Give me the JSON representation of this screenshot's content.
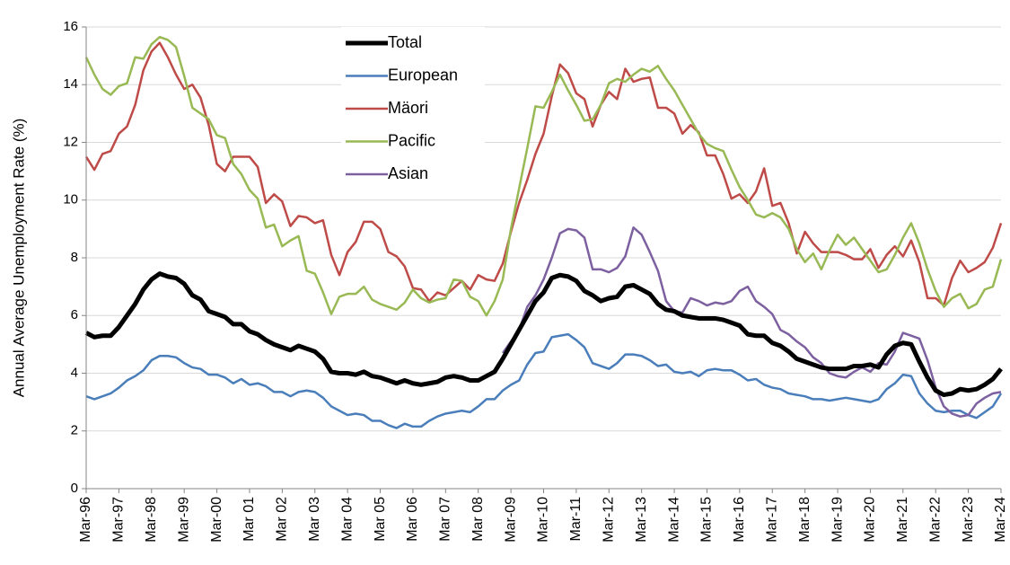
{
  "chart_data": {
    "type": "line",
    "y_label": "Annual Average Unemployment Rate  (%)",
    "categories": [
      "Mar-96",
      null,
      null,
      null,
      "Mar-97",
      null,
      null,
      null,
      "Mar-98",
      null,
      null,
      null,
      "Mar-99",
      null,
      null,
      null,
      "Mar-00",
      null,
      null,
      null,
      "Mar 01",
      null,
      null,
      null,
      "Mar 02",
      null,
      null,
      null,
      "Mar 03",
      null,
      null,
      null,
      "Mar 04",
      null,
      null,
      null,
      "Mar 05",
      null,
      null,
      null,
      "Mar 06",
      null,
      null,
      null,
      "Mar 07",
      null,
      null,
      null,
      "Mar 08",
      null,
      null,
      null,
      "Mar-09",
      null,
      null,
      null,
      "Mar-10",
      null,
      null,
      null,
      "Mar-11",
      null,
      null,
      null,
      "Mar-12",
      null,
      null,
      null,
      "Mar-13",
      null,
      null,
      null,
      "Mar-14",
      null,
      null,
      null,
      "Mar-15",
      null,
      null,
      null,
      "Mar-16",
      null,
      null,
      null,
      "Mar-17",
      null,
      null,
      null,
      "Mar-18",
      null,
      null,
      null,
      "Mar-19",
      null,
      null,
      null,
      "Mar-20",
      null,
      null,
      null,
      "Mar-21",
      null,
      null,
      null,
      "Mar-22",
      null,
      null,
      null,
      "Mar-23",
      null,
      null,
      null,
      "Mar-24"
    ],
    "series": [
      {
        "name": "Total",
        "color": "#000000",
        "width": 5,
        "values": [
          5.4,
          5.25,
          5.3,
          5.3,
          5.6,
          6.0,
          6.4,
          6.9,
          7.25,
          7.45,
          7.35,
          7.3,
          7.1,
          6.7,
          6.55,
          6.15,
          6.05,
          5.95,
          5.7,
          5.7,
          5.45,
          5.35,
          5.15,
          5.0,
          4.9,
          4.8,
          4.95,
          4.85,
          4.75,
          4.5,
          4.05,
          4.0,
          4.0,
          3.95,
          4.05,
          3.9,
          3.85,
          3.75,
          3.65,
          3.75,
          3.65,
          3.6,
          3.65,
          3.7,
          3.85,
          3.9,
          3.85,
          3.75,
          3.75,
          3.9,
          4.05,
          4.5,
          5.0,
          5.5,
          6.0,
          6.5,
          6.8,
          7.3,
          7.4,
          7.35,
          7.2,
          6.85,
          6.7,
          6.5,
          6.6,
          6.65,
          7.0,
          7.05,
          6.9,
          6.75,
          6.4,
          6.2,
          6.15,
          6.0,
          5.95,
          5.9,
          5.9,
          5.9,
          5.85,
          5.75,
          5.65,
          5.35,
          5.3,
          5.3,
          5.05,
          4.95,
          4.75,
          4.5,
          4.4,
          4.3,
          4.2,
          4.15,
          4.15,
          4.15,
          4.25,
          4.25,
          4.3,
          4.2,
          4.65,
          4.95,
          5.05,
          5.0,
          4.4,
          3.85,
          3.4,
          3.25,
          3.3,
          3.45,
          3.4,
          3.45,
          3.6,
          3.8,
          4.15
        ]
      },
      {
        "name": "European",
        "color": "#4a7ebb",
        "width": 2.5,
        "values": [
          3.2,
          3.1,
          3.2,
          3.3,
          3.5,
          3.75,
          3.9,
          4.1,
          4.45,
          4.6,
          4.6,
          4.55,
          4.35,
          4.2,
          4.15,
          3.95,
          3.95,
          3.85,
          3.65,
          3.8,
          3.6,
          3.65,
          3.55,
          3.35,
          3.35,
          3.2,
          3.35,
          3.4,
          3.35,
          3.15,
          2.85,
          2.7,
          2.55,
          2.6,
          2.55,
          2.35,
          2.35,
          2.2,
          2.1,
          2.25,
          2.15,
          2.15,
          2.35,
          2.5,
          2.6,
          2.65,
          2.7,
          2.65,
          2.85,
          3.1,
          3.1,
          3.4,
          3.6,
          3.75,
          4.3,
          4.7,
          4.75,
          5.25,
          5.3,
          5.35,
          5.15,
          4.9,
          4.35,
          4.25,
          4.15,
          4.35,
          4.65,
          4.65,
          4.6,
          4.45,
          4.25,
          4.3,
          4.05,
          4.0,
          4.05,
          3.9,
          4.1,
          4.15,
          4.1,
          4.1,
          3.95,
          3.75,
          3.8,
          3.6,
          3.5,
          3.45,
          3.3,
          3.25,
          3.2,
          3.1,
          3.1,
          3.05,
          3.1,
          3.15,
          3.1,
          3.05,
          3.0,
          3.1,
          3.45,
          3.65,
          3.95,
          3.9,
          3.3,
          2.95,
          2.7,
          2.65,
          2.7,
          2.7,
          2.55,
          2.45,
          2.65,
          2.85,
          3.3
        ]
      },
      {
        "name": "Mäori",
        "color": "#be4b48",
        "width": 2.5,
        "values": [
          11.5,
          11.05,
          11.6,
          11.7,
          12.3,
          12.55,
          13.3,
          14.5,
          15.15,
          15.45,
          14.95,
          14.35,
          13.85,
          14.0,
          13.55,
          12.6,
          11.25,
          11.0,
          11.5,
          11.5,
          11.5,
          11.15,
          9.9,
          10.2,
          9.95,
          9.1,
          9.45,
          9.4,
          9.2,
          9.3,
          8.1,
          7.4,
          8.2,
          8.55,
          9.25,
          9.25,
          9.0,
          8.2,
          8.05,
          7.7,
          6.95,
          6.9,
          6.5,
          6.8,
          6.7,
          6.95,
          7.2,
          6.9,
          7.4,
          7.25,
          7.2,
          7.8,
          8.9,
          9.9,
          10.7,
          11.6,
          12.3,
          13.6,
          14.7,
          14.4,
          13.7,
          13.5,
          12.55,
          13.3,
          13.75,
          13.5,
          14.55,
          14.1,
          14.2,
          14.25,
          13.2,
          13.2,
          13.0,
          12.3,
          12.6,
          12.35,
          11.55,
          11.55,
          10.9,
          10.05,
          10.2,
          9.9,
          10.3,
          11.1,
          9.8,
          9.9,
          9.2,
          8.15,
          8.9,
          8.5,
          8.2,
          8.2,
          8.2,
          8.1,
          7.95,
          7.95,
          8.3,
          7.65,
          8.1,
          8.4,
          8.05,
          8.6,
          7.85,
          6.6,
          6.6,
          6.35,
          7.3,
          7.9,
          7.5,
          7.65,
          7.85,
          8.35,
          9.2
        ]
      },
      {
        "name": "Pacific",
        "color": "#98b954",
        "width": 2.5,
        "values": [
          14.95,
          14.35,
          13.85,
          13.65,
          13.95,
          14.05,
          14.95,
          14.9,
          15.4,
          15.65,
          15.55,
          15.3,
          14.3,
          13.2,
          13.0,
          12.8,
          12.25,
          12.15,
          11.25,
          10.9,
          10.35,
          10.05,
          9.05,
          9.15,
          8.4,
          8.6,
          8.75,
          7.55,
          7.45,
          6.8,
          6.05,
          6.65,
          6.75,
          6.75,
          7.0,
          6.55,
          6.4,
          6.3,
          6.2,
          6.45,
          6.9,
          6.6,
          6.45,
          6.55,
          6.6,
          7.25,
          7.2,
          6.65,
          6.5,
          6.0,
          6.5,
          7.25,
          9.0,
          10.4,
          11.8,
          13.25,
          13.2,
          13.75,
          14.35,
          13.8,
          13.3,
          12.75,
          12.8,
          13.3,
          14.05,
          14.2,
          14.1,
          14.35,
          14.55,
          14.45,
          14.65,
          14.2,
          13.8,
          13.3,
          12.8,
          12.3,
          11.95,
          11.8,
          11.7,
          11.05,
          10.45,
          10.0,
          9.5,
          9.4,
          9.55,
          9.4,
          9.0,
          8.3,
          7.85,
          8.15,
          7.6,
          8.25,
          8.8,
          8.45,
          8.7,
          8.3,
          7.9,
          7.5,
          7.6,
          8.1,
          8.7,
          9.2,
          8.5,
          7.6,
          6.85,
          6.3,
          6.6,
          6.75,
          6.25,
          6.4,
          6.9,
          7.0,
          7.95
        ]
      },
      {
        "name": "Asian",
        "color": "#7d60a0",
        "width": 2.5,
        "values": [
          null,
          null,
          null,
          null,
          null,
          null,
          null,
          null,
          null,
          null,
          null,
          null,
          null,
          null,
          null,
          null,
          null,
          null,
          null,
          null,
          null,
          null,
          null,
          null,
          null,
          null,
          null,
          null,
          null,
          null,
          null,
          null,
          null,
          null,
          null,
          null,
          null,
          null,
          null,
          null,
          null,
          null,
          null,
          null,
          null,
          null,
          null,
          null,
          null,
          null,
          null,
          4.7,
          5.1,
          5.5,
          6.3,
          6.7,
          7.25,
          8.0,
          8.85,
          9.0,
          8.95,
          8.7,
          7.6,
          7.6,
          7.5,
          7.65,
          8.05,
          9.05,
          8.8,
          8.2,
          7.55,
          6.5,
          6.15,
          6.1,
          6.6,
          6.5,
          6.35,
          6.45,
          6.4,
          6.5,
          6.85,
          7.0,
          6.5,
          6.3,
          6.05,
          5.5,
          5.35,
          5.1,
          4.9,
          4.55,
          4.35,
          4.0,
          3.9,
          3.85,
          4.05,
          4.2,
          4.05,
          4.35,
          4.3,
          4.75,
          5.4,
          5.3,
          5.2,
          4.45,
          3.5,
          2.85,
          2.6,
          2.5,
          2.55,
          2.95,
          3.15,
          3.3,
          3.35
        ]
      }
    ],
    "ylim": [
      0,
      16
    ],
    "yticks": [
      0,
      2,
      4,
      6,
      8,
      10,
      12,
      14,
      16
    ],
    "grid": true
  }
}
